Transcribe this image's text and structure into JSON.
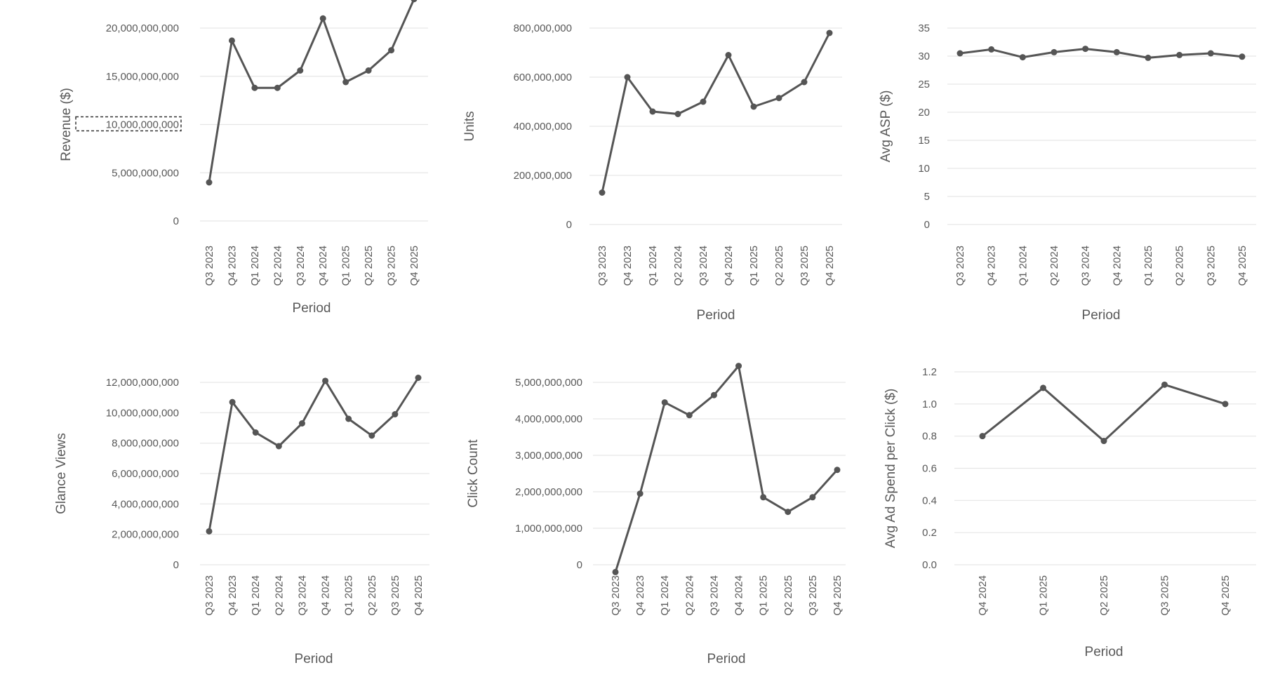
{
  "colors": {
    "line": "#555555",
    "grid": "#e6e6e6",
    "text": "#595959",
    "focus_outline": "#333333"
  },
  "chart_data": [
    {
      "type": "line",
      "xlabel": "Period",
      "ylabel": "Revenue ($)",
      "ylim": [
        0,
        22000000000
      ],
      "grid": true,
      "yticks": [
        0,
        5000000000,
        10000000000,
        15000000000,
        20000000000
      ],
      "ytick_labels": [
        "0",
        "5,000,000,000",
        "10,000,000,000",
        "15,000,000,000",
        "20,000,000,000"
      ],
      "focused_tick": "10,000,000,000",
      "categories": [
        "Q3 2023",
        "Q4 2023",
        "Q1 2024",
        "Q2 2024",
        "Q3 2024",
        "Q4 2024",
        "Q1 2025",
        "Q2 2025",
        "Q3 2025",
        "Q4 2025"
      ],
      "values": [
        4000000000,
        18700000000,
        13800000000,
        13800000000,
        15600000000,
        21000000000,
        14400000000,
        15600000000,
        17700000000,
        23000000000
      ]
    },
    {
      "type": "line",
      "xlabel": "Period",
      "ylabel": "Units",
      "ylim": [
        0,
        800000000
      ],
      "grid": true,
      "yticks": [
        0,
        200000000,
        400000000,
        600000000,
        800000000
      ],
      "ytick_labels": [
        "0",
        "200,000,000",
        "400,000,000",
        "600,000,000",
        "800,000,000"
      ],
      "categories": [
        "Q3 2023",
        "Q4 2023",
        "Q1 2024",
        "Q2 2024",
        "Q3 2024",
        "Q4 2024",
        "Q1 2025",
        "Q2 2025",
        "Q3 2025",
        "Q4 2025"
      ],
      "values": [
        130000000,
        600000000,
        460000000,
        450000000,
        500000000,
        690000000,
        480000000,
        515000000,
        580000000,
        780000000
      ]
    },
    {
      "type": "line",
      "xlabel": "Period",
      "ylabel": "Avg ASP ($)",
      "ylim": [
        0,
        35
      ],
      "grid": true,
      "yticks": [
        0,
        5,
        10,
        15,
        20,
        25,
        30,
        35
      ],
      "ytick_labels": [
        "0",
        "5",
        "10",
        "15",
        "20",
        "25",
        "30",
        "35"
      ],
      "categories": [
        "Q3 2023",
        "Q4 2023",
        "Q1 2024",
        "Q2 2024",
        "Q3 2024",
        "Q4 2024",
        "Q1 2025",
        "Q2 2025",
        "Q3 2025",
        "Q4 2025"
      ],
      "values": [
        30.5,
        31.2,
        29.8,
        30.7,
        31.3,
        30.7,
        29.7,
        30.2,
        30.5,
        29.9
      ]
    },
    {
      "type": "line",
      "xlabel": "Period",
      "ylabel": "Glance Views",
      "ylim": [
        0,
        12000000000
      ],
      "grid": true,
      "yticks": [
        0,
        2000000000,
        4000000000,
        6000000000,
        8000000000,
        10000000000,
        12000000000
      ],
      "ytick_labels": [
        "0",
        "2,000,000,000",
        "4,000,000,000",
        "6,000,000,000",
        "8,000,000,000",
        "10,000,000,000",
        "12,000,000,000"
      ],
      "categories": [
        "Q3 2023",
        "Q4 2023",
        "Q1 2024",
        "Q2 2024",
        "Q3 2024",
        "Q4 2024",
        "Q1 2025",
        "Q2 2025",
        "Q3 2025",
        "Q4 2025"
      ],
      "values": [
        2200000000,
        10700000000,
        8700000000,
        7800000000,
        9300000000,
        12100000000,
        9600000000,
        8500000000,
        9900000000,
        12300000000
      ]
    },
    {
      "type": "line",
      "xlabel": "Period",
      "ylabel": "Click Count",
      "ylim": [
        0,
        5000000000
      ],
      "grid": true,
      "yticks": [
        0,
        1000000000,
        2000000000,
        3000000000,
        4000000000,
        5000000000
      ],
      "ytick_labels": [
        "0",
        "1,000,000,000",
        "2,000,000,000",
        "3,000,000,000",
        "4,000,000,000",
        "5,000,000,000"
      ],
      "categories": [
        "Q3 2023",
        "Q4 2023",
        "Q1 2024",
        "Q2 2024",
        "Q3 2024",
        "Q4 2024",
        "Q1 2025",
        "Q2 2025",
        "Q3 2025",
        "Q4 2025"
      ],
      "values": [
        -200000000,
        1950000000,
        4450000000,
        4100000000,
        4650000000,
        5450000000,
        1850000000,
        1450000000,
        1850000000,
        2600000000
      ]
    },
    {
      "type": "line",
      "xlabel": "Period",
      "ylabel": "Avg Ad Spend per Click ($)",
      "ylim": [
        0,
        1.2
      ],
      "grid": true,
      "yticks": [
        0,
        0.2,
        0.4,
        0.6,
        0.8,
        1.0,
        1.2
      ],
      "ytick_labels": [
        "0.0",
        "0.2",
        "0.4",
        "0.6",
        "0.8",
        "1.0",
        "1.2"
      ],
      "categories": [
        "Q4 2024",
        "Q1 2025",
        "Q2 2025",
        "Q3 2025",
        "Q4 2025"
      ],
      "values": [
        0.8,
        1.1,
        0.77,
        1.12,
        1.0
      ]
    }
  ]
}
